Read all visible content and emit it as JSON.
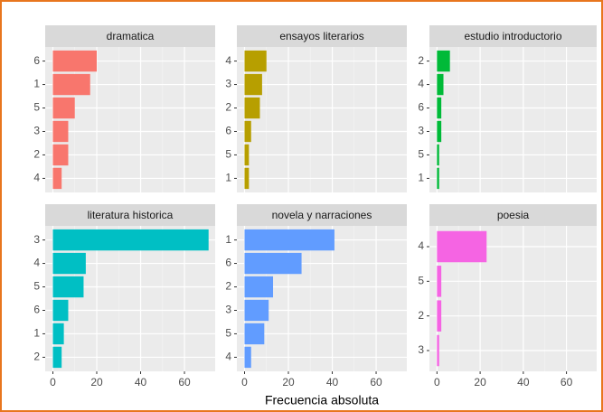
{
  "chart_data": [
    {
      "type": "bar",
      "orientation": "horizontal",
      "title": "dramatica",
      "categories": [
        "6",
        "1",
        "5",
        "3",
        "2",
        "4"
      ],
      "values": [
        20,
        17,
        10,
        7,
        7,
        4
      ],
      "color": "#F8766D",
      "xlim": [
        -3.5,
        74
      ],
      "xticks": [
        0,
        20,
        40,
        60
      ],
      "grid": true
    },
    {
      "type": "bar",
      "orientation": "horizontal",
      "title": "ensayos literarios",
      "categories": [
        "4",
        "3",
        "2",
        "6",
        "5",
        "1"
      ],
      "values": [
        10,
        8,
        7,
        3,
        2,
        2
      ],
      "color": "#B79F00",
      "xlim": [
        -3.5,
        74
      ],
      "xticks": [
        0,
        20,
        40,
        60
      ],
      "grid": true
    },
    {
      "type": "bar",
      "orientation": "horizontal",
      "title": "estudio introductorio",
      "categories": [
        "2",
        "4",
        "6",
        "3",
        "5",
        "1"
      ],
      "values": [
        6,
        3,
        2,
        2,
        1,
        1
      ],
      "color": "#00BA38",
      "xlim": [
        -3.5,
        74
      ],
      "xticks": [
        0,
        20,
        40,
        60
      ],
      "grid": true
    },
    {
      "type": "bar",
      "orientation": "horizontal",
      "title": "literatura historica",
      "categories": [
        "3",
        "4",
        "5",
        "6",
        "1",
        "2"
      ],
      "values": [
        71,
        15,
        14,
        7,
        5,
        4
      ],
      "color": "#00BFC4",
      "xlim": [
        -3.5,
        74
      ],
      "xticks": [
        0,
        20,
        40,
        60
      ],
      "grid": true
    },
    {
      "type": "bar",
      "orientation": "horizontal",
      "title": "novela y narraciones",
      "categories": [
        "1",
        "6",
        "2",
        "3",
        "5",
        "4"
      ],
      "values": [
        41,
        26,
        13,
        11,
        9,
        3
      ],
      "color": "#619CFF",
      "xlim": [
        -3.5,
        74
      ],
      "xticks": [
        0,
        20,
        40,
        60
      ],
      "grid": true,
      "xlabel": "Frecuencia absoluta"
    },
    {
      "type": "bar",
      "orientation": "horizontal",
      "title": "poesia",
      "categories": [
        "4",
        "5",
        "2",
        "3"
      ],
      "values": [
        23,
        2,
        2,
        1
      ],
      "color": "#F564E3",
      "xlim": [
        -3.5,
        74
      ],
      "xticks": [
        0,
        20,
        40,
        60
      ],
      "grid": true
    }
  ]
}
